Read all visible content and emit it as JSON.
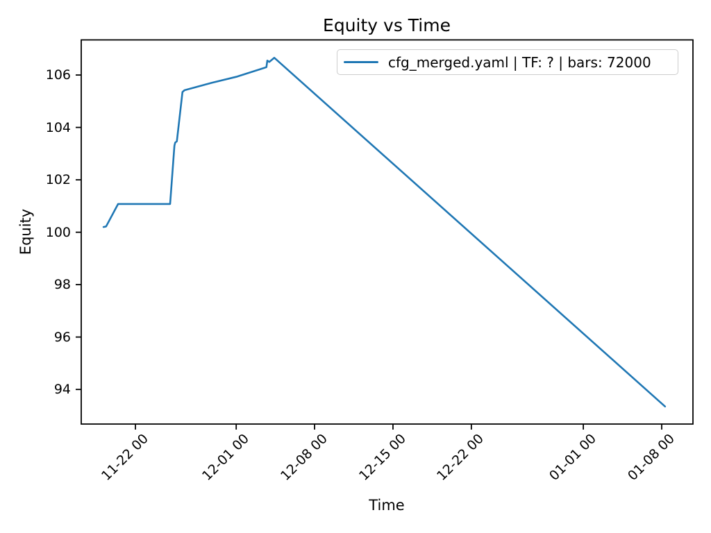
{
  "page": {
    "background": "#ffffff"
  },
  "chart_data": {
    "type": "line",
    "title": "Equity vs Time",
    "xlabel": "Time",
    "ylabel": "Equity",
    "grid": false,
    "axis_color": "#000000",
    "legend": {
      "position": "upper right",
      "entries": [
        {
          "label": "cfg_merged.yaml | TF: ? | bars: 72000",
          "color": "#1f77b4"
        }
      ]
    },
    "x_unit_note": "day offset relative to the 11-22 00 tick",
    "x_domain": [
      -4.84,
      49.79
    ],
    "y_domain": [
      92.68,
      107.34
    ],
    "x_ticks": [
      {
        "d": 0,
        "label": "11-22 00"
      },
      {
        "d": 9,
        "label": "12-01 00"
      },
      {
        "d": 16,
        "label": "12-08 00"
      },
      {
        "d": 23,
        "label": "12-15 00"
      },
      {
        "d": 30,
        "label": "12-22 00"
      },
      {
        "d": 40,
        "label": "01-01 00"
      },
      {
        "d": 47,
        "label": "01-08 00"
      }
    ],
    "y_ticks": [
      94,
      96,
      98,
      100,
      102,
      104,
      106
    ],
    "series": [
      {
        "name": "cfg_merged.yaml | TF: ? | bars: 72000",
        "color": "#1f77b4",
        "points": [
          {
            "t": "11-19 04:00",
            "d": -2.85,
            "equity": 100.2
          },
          {
            "t": "11-19 09:00",
            "d": -2.62,
            "equity": 100.22
          },
          {
            "t": "11-20 11:00",
            "d": -1.55,
            "equity": 101.08
          },
          {
            "t": "11-25 02:00",
            "d": 3.1,
            "equity": 101.08
          },
          {
            "t": "11-25 12:00",
            "d": 3.48,
            "equity": 103.3
          },
          {
            "t": "11-25 13:00",
            "d": 3.55,
            "equity": 103.42
          },
          {
            "t": "11-25 17:00",
            "d": 3.7,
            "equity": 103.47
          },
          {
            "t": "11-26 05:00",
            "d": 4.2,
            "equity": 105.35
          },
          {
            "t": "11-26 09:00",
            "d": 4.38,
            "equity": 105.42
          },
          {
            "t": "11-28 19:00",
            "d": 6.8,
            "equity": 105.7
          },
          {
            "t": "12-01 00:00",
            "d": 9.0,
            "equity": 105.93
          },
          {
            "t": "12-03 17:00",
            "d": 11.7,
            "equity": 106.3
          },
          {
            "t": "12-03 19:00",
            "d": 11.78,
            "equity": 106.55
          },
          {
            "t": "12-03 23:00",
            "d": 11.95,
            "equity": 106.5
          },
          {
            "t": "12-04 10:00",
            "d": 12.4,
            "equity": 106.66
          },
          {
            "t": "01-08 07:00",
            "d": 47.3,
            "equity": 93.35
          }
        ]
      }
    ]
  }
}
